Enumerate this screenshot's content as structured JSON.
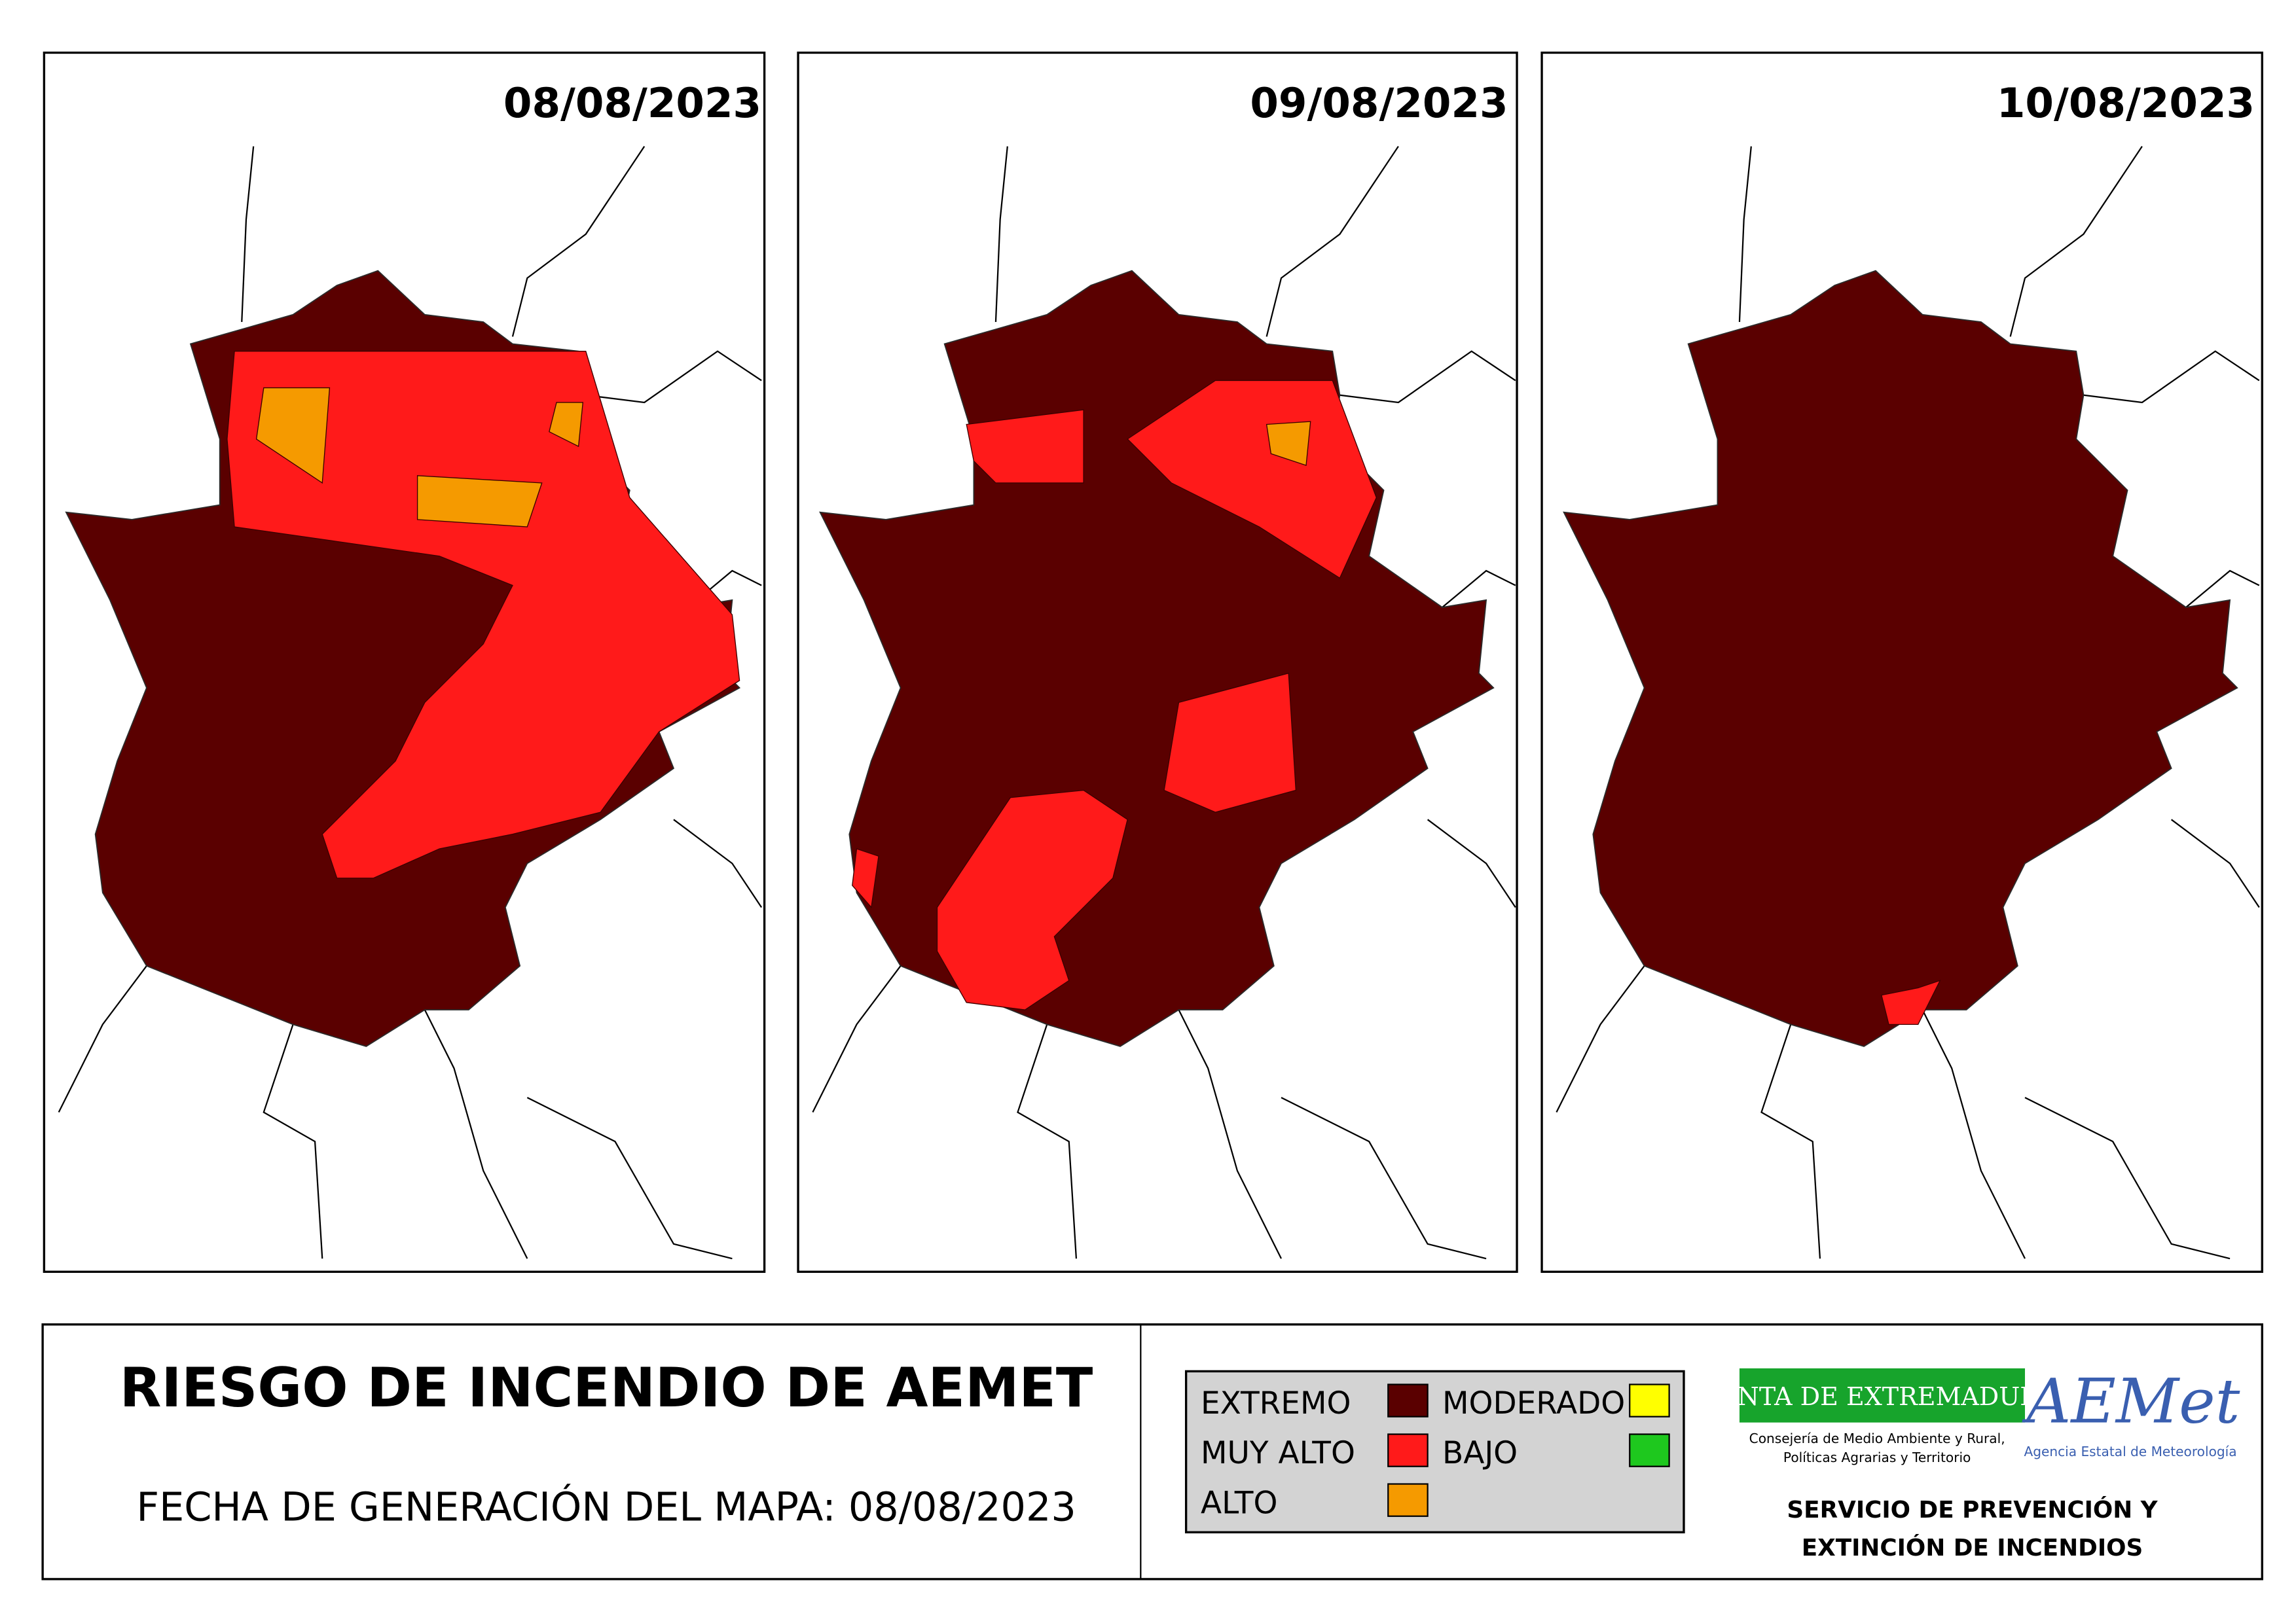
{
  "panels": [
    {
      "date": "08/08/2023"
    },
    {
      "date": "09/08/2023"
    },
    {
      "date": "10/08/2023"
    }
  ],
  "title": "RIESGO DE INCENDIO DE AEMET",
  "subtitle": "FECHA DE GENERACIÓN DEL MAPA: 08/08/2023",
  "legend": [
    {
      "label": "EXTREMO",
      "color": "#5a0000"
    },
    {
      "label": "MUY ALTO",
      "color": "#ff1a1a"
    },
    {
      "label": "ALTO",
      "color": "#f59a00"
    },
    {
      "label": "MODERADO",
      "color": "#ffff00"
    },
    {
      "label": "BAJO",
      "color": "#1ec81e"
    }
  ],
  "logos": {
    "junta": "JUNTA DE EXTREMADURA",
    "junta_sub": [
      "Consejería de Medio Ambiente y Rural,",
      "Políticas Agrarias y Territorio"
    ],
    "aemet": "AEMet",
    "aemet_sub": "Agencia Estatal de Meteorología"
  },
  "service": [
    "SERVICIO DE PREVENCIÓN Y",
    "EXTINCIÓN DE INCENDIOS"
  ]
}
